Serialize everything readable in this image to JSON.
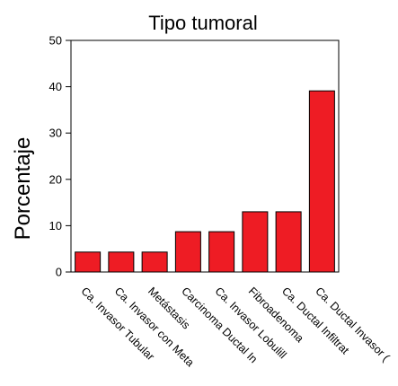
{
  "chart_data": {
    "type": "bar",
    "title": "Tipo tumoral",
    "xlabel": "",
    "ylabel": "Porcentaje",
    "ylim": [
      0,
      50
    ],
    "yticks": [
      0,
      10,
      20,
      30,
      40,
      50
    ],
    "categories": [
      "Ca. Invasor Tubular",
      "Ca. Invasor con Meta",
      "Metástasis",
      "Carcinoma Ductal In",
      "Ca. Invasor Lobulill",
      "Fibroadenoma",
      "Ca. Ductal Infiltrat",
      "Ca. Ductal Invasor ("
    ],
    "values": [
      4.3,
      4.3,
      4.3,
      8.7,
      8.7,
      13.0,
      13.0,
      39.1
    ],
    "bar_color": "#ee1c24",
    "grid": false,
    "legend": "none"
  }
}
